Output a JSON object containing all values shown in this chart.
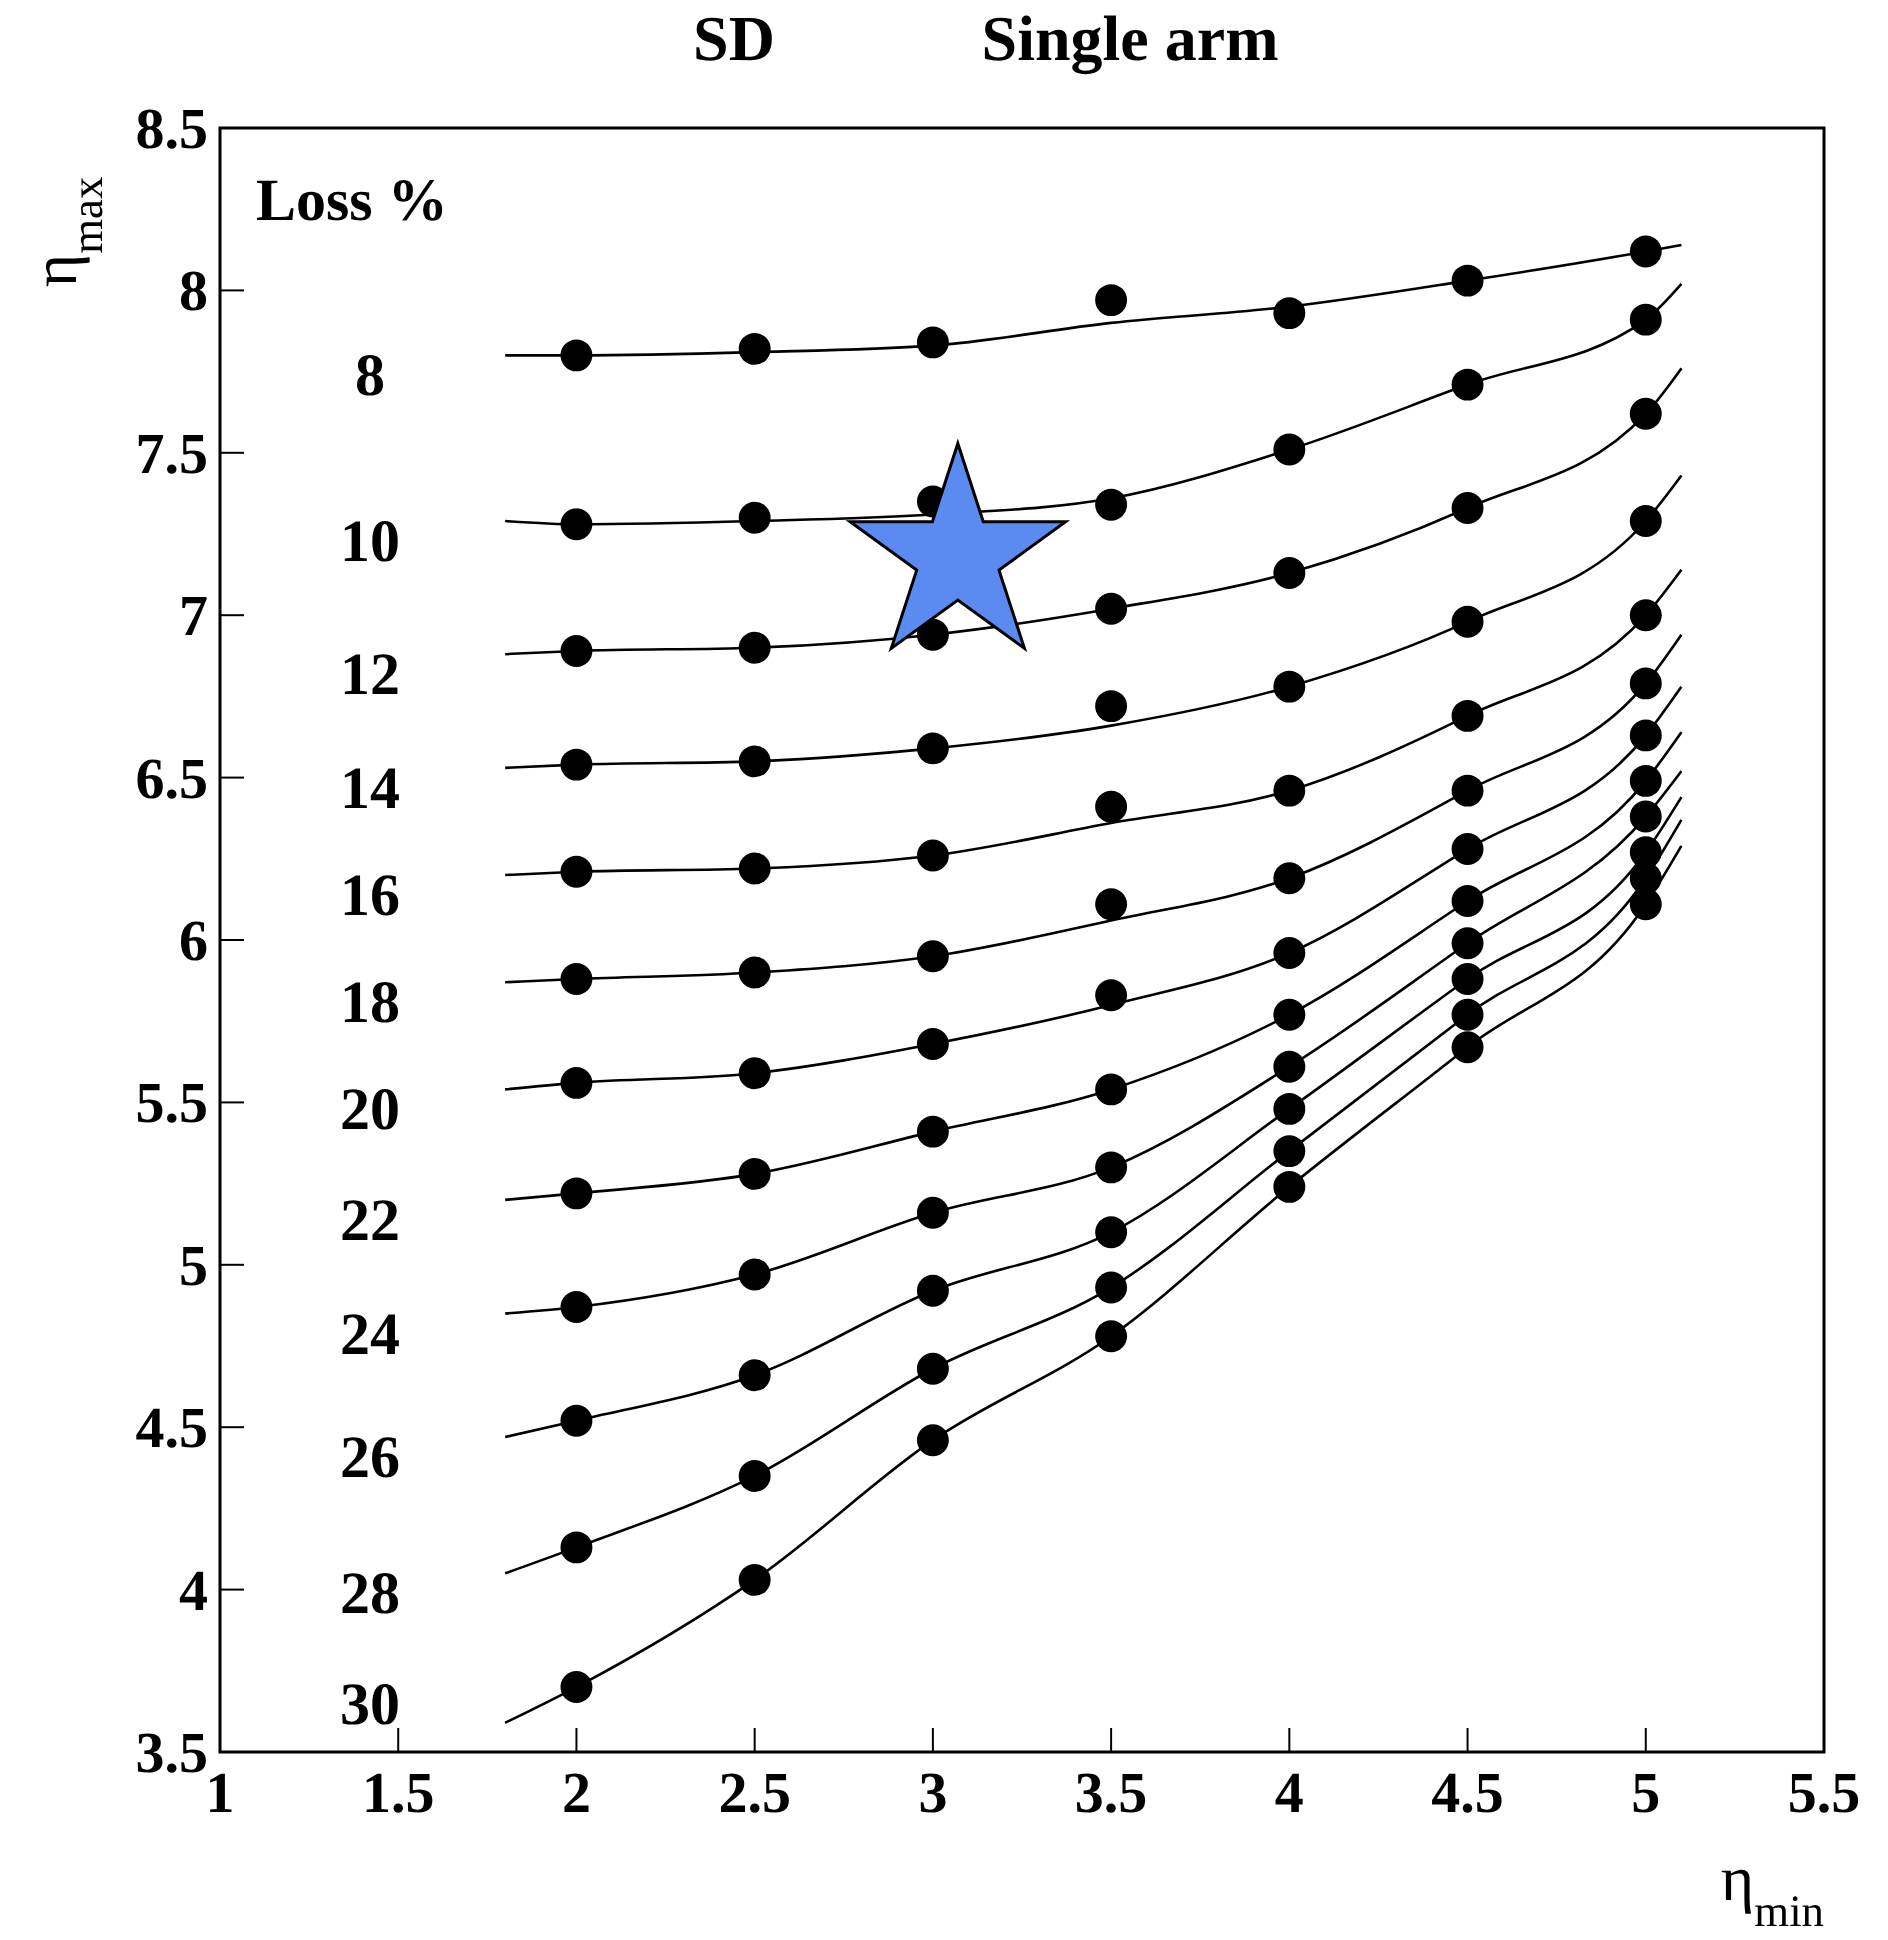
{
  "chart_data": {
    "type": "scatter",
    "title": "SD",
    "subtitle": "Single arm",
    "xlabel": "η$_{min}$",
    "ylabel": "η$_{max}$",
    "legend_title": "Loss %",
    "xlim": [
      1,
      5.5
    ],
    "xticks": [
      1,
      1.5,
      2,
      2.5,
      3,
      3.5,
      4,
      4.5,
      5,
      5.5
    ],
    "ylim": [
      3.5,
      8.5
    ],
    "yticks": [
      3.5,
      4,
      4.5,
      5,
      5.5,
      6,
      6.5,
      7,
      7.5,
      8,
      8.5
    ],
    "grid": false,
    "x": [
      2,
      2.5,
      3,
      3.5,
      4,
      4.5,
      5
    ],
    "series": [
      {
        "type": "line",
        "name": "8",
        "color": "#000000",
        "marker": "none",
        "x": [
          1.8,
          2,
          2.5,
          3,
          3.5,
          4,
          4.5,
          5,
          5.1
        ],
        "values": [
          7.8,
          7.8,
          7.81,
          7.83,
          7.9,
          7.95,
          8.03,
          8.12,
          8.14
        ]
      },
      {
        "type": "line",
        "name": "10",
        "color": "#000000",
        "marker": "none",
        "x": [
          1.8,
          2,
          2.5,
          3,
          3.5,
          4,
          4.5,
          5,
          5.1
        ],
        "values": [
          7.29,
          7.28,
          7.29,
          7.31,
          7.36,
          7.51,
          7.71,
          7.91,
          8.02
        ]
      },
      {
        "type": "line",
        "name": "12",
        "color": "#000000",
        "marker": "none",
        "x": [
          1.8,
          2,
          2.5,
          3,
          3.5,
          4,
          4.5,
          5,
          5.1
        ],
        "values": [
          6.88,
          6.89,
          6.9,
          6.94,
          7.02,
          7.13,
          7.33,
          7.62,
          7.76
        ]
      },
      {
        "type": "line",
        "name": "14",
        "color": "#000000",
        "marker": "none",
        "x": [
          1.8,
          2,
          2.5,
          3,
          3.5,
          4,
          4.5,
          5,
          5.1
        ],
        "values": [
          6.53,
          6.54,
          6.55,
          6.59,
          6.66,
          6.78,
          6.98,
          7.29,
          7.43
        ]
      },
      {
        "type": "line",
        "name": "16",
        "color": "#000000",
        "marker": "none",
        "x": [
          1.8,
          2,
          2.5,
          3,
          3.5,
          4,
          4.5,
          5,
          5.1
        ],
        "values": [
          6.2,
          6.21,
          6.22,
          6.26,
          6.36,
          6.46,
          6.69,
          7,
          7.14
        ]
      },
      {
        "type": "line",
        "name": "18",
        "color": "#000000",
        "marker": "none",
        "x": [
          1.8,
          2,
          2.5,
          3,
          3.5,
          4,
          4.5,
          5,
          5.1
        ],
        "values": [
          5.87,
          5.88,
          5.9,
          5.95,
          6.06,
          6.19,
          6.46,
          6.79,
          6.94
        ]
      },
      {
        "type": "line",
        "name": "20",
        "color": "#000000",
        "marker": "none",
        "x": [
          1.8,
          2,
          2.5,
          3,
          3.5,
          4,
          4.5,
          5,
          5.1
        ],
        "values": [
          5.54,
          5.56,
          5.59,
          5.68,
          5.8,
          5.96,
          6.28,
          6.63,
          6.78
        ]
      },
      {
        "type": "line",
        "name": "22",
        "color": "#000000",
        "marker": "none",
        "x": [
          1.8,
          2,
          2.5,
          3,
          3.5,
          4,
          4.5,
          5,
          5.1
        ],
        "values": [
          5.2,
          5.22,
          5.28,
          5.41,
          5.54,
          5.77,
          6.12,
          6.49,
          6.64
        ]
      },
      {
        "type": "line",
        "name": "24",
        "color": "#000000",
        "marker": "none",
        "x": [
          1.8,
          2,
          2.5,
          3,
          3.5,
          4,
          4.5,
          5,
          5.1
        ],
        "values": [
          4.85,
          4.87,
          4.97,
          5.16,
          5.3,
          5.61,
          5.99,
          6.38,
          6.52
        ]
      },
      {
        "type": "line",
        "name": "26",
        "color": "#000000",
        "marker": "none",
        "x": [
          1.8,
          2,
          2.5,
          3,
          3.5,
          4,
          4.5,
          5,
          5.1
        ],
        "values": [
          4.47,
          4.52,
          4.66,
          4.92,
          5.1,
          5.48,
          5.88,
          6.27,
          6.44
        ]
      },
      {
        "type": "line",
        "name": "28",
        "color": "#000000",
        "marker": "none",
        "x": [
          1.8,
          2,
          2.5,
          3,
          3.5,
          4,
          4.5,
          5,
          5.1
        ],
        "values": [
          4.05,
          4.13,
          4.35,
          4.68,
          4.93,
          5.35,
          5.77,
          6.19,
          6.37
        ]
      },
      {
        "type": "line",
        "name": "30",
        "color": "#000000",
        "marker": "none",
        "x": [
          1.8,
          2,
          2.5,
          3,
          3.5,
          4,
          4.5,
          5,
          5.1
        ],
        "values": [
          3.59,
          3.7,
          4.03,
          4.46,
          4.78,
          5.24,
          5.67,
          6.11,
          6.29
        ]
      },
      {
        "color": "#000000",
        "marker": "circle",
        "values": [
          7.8,
          7.82,
          7.84,
          7.97,
          7.93,
          8.03,
          8.12
        ]
      },
      {
        "color": "#000000",
        "marker": "circle",
        "values": [
          7.28,
          7.3,
          7.35,
          7.34,
          7.51,
          7.71,
          7.91
        ]
      },
      {
        "color": "#000000",
        "marker": "circle",
        "values": [
          6.89,
          6.9,
          6.94,
          7.02,
          7.13,
          7.33,
          7.62
        ]
      },
      {
        "color": "#000000",
        "marker": "circle",
        "values": [
          6.54,
          6.55,
          6.59,
          6.72,
          6.78,
          6.98,
          7.29
        ]
      },
      {
        "color": "#000000",
        "marker": "circle",
        "values": [
          6.21,
          6.22,
          6.26,
          6.41,
          6.46,
          6.69,
          7
        ]
      },
      {
        "color": "#000000",
        "marker": "circle",
        "values": [
          5.88,
          5.9,
          5.95,
          6.11,
          6.19,
          6.46,
          6.79
        ]
      },
      {
        "color": "#000000",
        "marker": "circle",
        "values": [
          5.56,
          5.59,
          5.68,
          5.83,
          5.96,
          6.28,
          6.63
        ]
      },
      {
        "color": "#000000",
        "marker": "circle",
        "values": [
          5.22,
          5.28,
          5.41,
          5.54,
          5.77,
          6.12,
          6.49
        ]
      },
      {
        "color": "#000000",
        "marker": "circle",
        "values": [
          4.87,
          4.97,
          5.16,
          5.3,
          5.61,
          5.99,
          6.38
        ]
      },
      {
        "color": "#000000",
        "marker": "circle",
        "values": [
          4.52,
          4.66,
          4.92,
          5.1,
          5.48,
          5.88,
          6.27
        ]
      },
      {
        "color": "#000000",
        "marker": "circle",
        "values": [
          4.13,
          4.35,
          4.68,
          4.93,
          5.35,
          5.77,
          6.19
        ]
      },
      {
        "color": "#000000",
        "marker": "circle",
        "values": [
          3.7,
          4.03,
          4.46,
          4.78,
          5.24,
          5.67,
          6.11
        ]
      },
      {
        "color": "#5b8af0",
        "marker": "star",
        "x": [
          3.07
        ],
        "values": [
          7.18
        ]
      }
    ]
  }
}
